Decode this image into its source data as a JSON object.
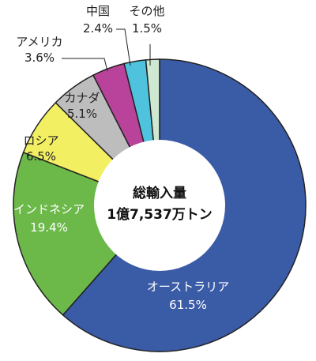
{
  "chart_data": {
    "type": "pie",
    "style": "donut",
    "center_label": {
      "line1": "総輸入量",
      "line2": "1億7,537万トン"
    },
    "slices": [
      {
        "label": "オーストラリア",
        "value": 61.5,
        "display": "61.5%",
        "color": "#3a5ba6",
        "text_color": "#ffffff"
      },
      {
        "label": "インドネシア",
        "value": 19.4,
        "display": "19.4%",
        "color": "#6cb94a",
        "text_color": "#ffffff"
      },
      {
        "label": "ロシア",
        "value": 6.5,
        "display": "6.5%",
        "color": "#f2ef62",
        "text_color": "#222222"
      },
      {
        "label": "カナダ",
        "value": 5.1,
        "display": "5.1%",
        "color": "#bdbdbd",
        "text_color": "#222222"
      },
      {
        "label": "アメリカ",
        "value": 3.6,
        "display": "3.6%",
        "color": "#b9439b",
        "text_color": "#222222"
      },
      {
        "label": "中国",
        "value": 2.4,
        "display": "2.4%",
        "color": "#4fc3dd",
        "text_color": "#222222"
      },
      {
        "label": "その他",
        "value": 1.5,
        "display": "1.5%",
        "color": "#cfe8d2",
        "text_color": "#222222"
      }
    ]
  }
}
